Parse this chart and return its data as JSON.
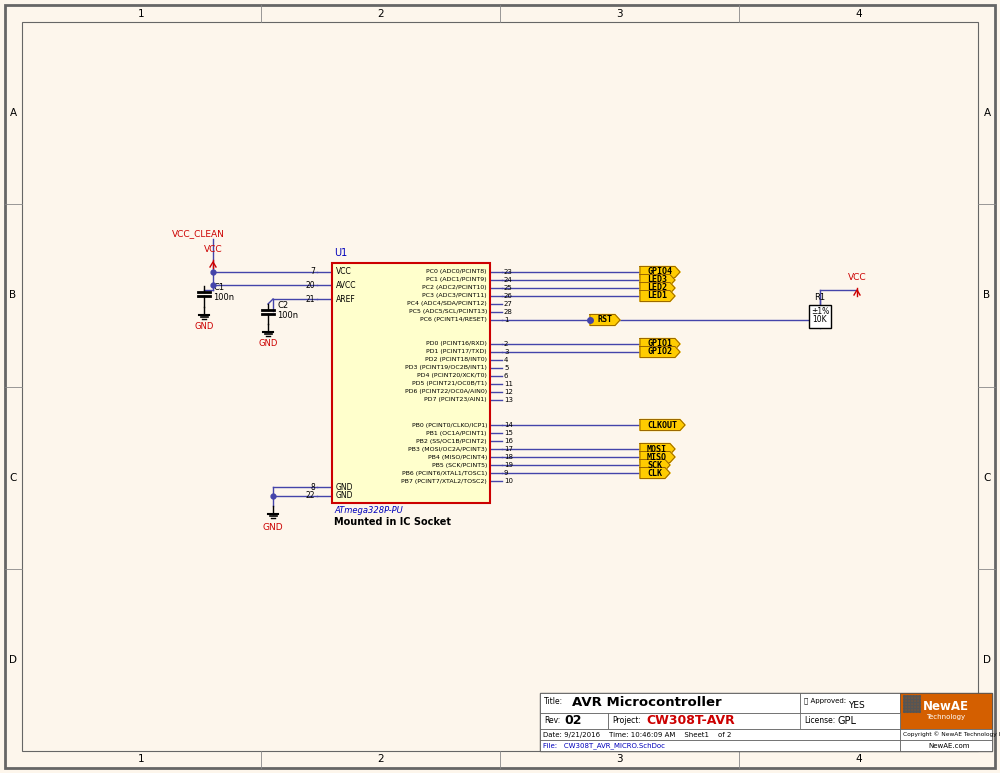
{
  "bg_color": "#fdf6ec",
  "page_width": 10.0,
  "page_height": 7.73,
  "title": "AVR Microcontroller",
  "project": "CW308T-AVR",
  "rev": "02",
  "license": "GPL",
  "date": "9/21/2016",
  "time": "10:46:09 AM",
  "sheet": "Sheet1  of 2",
  "copyright": "Copyright © NewAE Technology Inc.",
  "website": "NewAE.com",
  "file": "CW308T_AVR_MICRO.SchDoc",
  "approved": "YES",
  "chip_label": "U1",
  "chip_name": "ATmega328P-PU",
  "chip_subtitle": "Mounted in IC Socket",
  "chip_color": "#ffffcc",
  "chip_border": "#cc0000",
  "wire_color": "#4444aa",
  "text_color": "#000000",
  "red_text_color": "#cc0000",
  "blue_text_color": "#0000bb",
  "resistor_label": "R1",
  "resistor_val1": "±1%",
  "resistor_val2": "10K",
  "right_pins_group1": [
    [
      "PC0 (ADC0/PCINT8)",
      "23"
    ],
    [
      "PC1 (ADC1/PCINT9)",
      "24"
    ],
    [
      "PC2 (ADC2/PCINT10)",
      "25"
    ],
    [
      "PC3 (ADC3/PCINT11)",
      "26"
    ],
    [
      "PC4 (ADC4/SDA/PCINT12)",
      "27"
    ],
    [
      "PC5 (ADC5/SCL/PCINT13)",
      "28"
    ],
    [
      "PC6 (PCINT14/RESET)",
      "1"
    ]
  ],
  "right_pins_group2": [
    [
      "PD0 (PCINT16/RXD)",
      "2"
    ],
    [
      "PD1 (PCINT17/TXD)",
      "3"
    ],
    [
      "PD2 (PCINT18/INT0)",
      "4"
    ],
    [
      "PD3 (PCINT19/OC2B/INT1)",
      "5"
    ],
    [
      "PD4 (PCINT20/XCK/T0)",
      "6"
    ],
    [
      "PD5 (PCINT21/OC0B/T1)",
      "11"
    ],
    [
      "PD6 (PCINT22/OC0A/AIN0)",
      "12"
    ],
    [
      "PD7 (PCINT23/AIN1)",
      "13"
    ]
  ],
  "right_pins_group3": [
    [
      "PB0 (PCINT0/CLKO/ICP1)",
      "14"
    ],
    [
      "PB1 (OC1A/PCINT1)",
      "15"
    ],
    [
      "PB2 (SS/OC1B/PCINT2)",
      "16"
    ],
    [
      "PB3 (MOSI/OC2A/PCINT3)",
      "17"
    ],
    [
      "PB4 (MISO/PCINT4)",
      "18"
    ],
    [
      "PB5 (SCK/PCINT5)",
      "19"
    ],
    [
      "PB6 (PCINT6/XTAL1/TOSC1)",
      "9"
    ],
    [
      "PB7 (PCINT7/XTAL2/TOSC2)",
      "10"
    ]
  ],
  "net_color": "#ffcc00",
  "net_border": "#cc8800"
}
